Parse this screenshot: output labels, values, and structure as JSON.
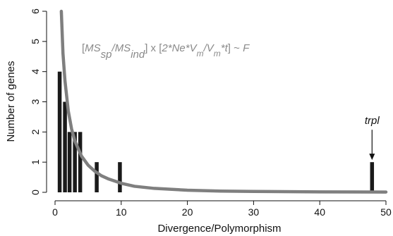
{
  "chart_data": {
    "type": "bar",
    "title": "",
    "xlabel": "Divergence/Polymorphism",
    "ylabel": "Number of genes",
    "xlim": [
      0,
      50
    ],
    "ylim": [
      0,
      6
    ],
    "xticks": [
      0,
      10,
      20,
      30,
      40,
      50
    ],
    "yticks": [
      0,
      1,
      2,
      3,
      4,
      5,
      6
    ],
    "bars": [
      {
        "x": 0.7,
        "count": 4
      },
      {
        "x": 1.5,
        "count": 3
      },
      {
        "x": 2.2,
        "count": 2
      },
      {
        "x": 3.0,
        "count": 2
      },
      {
        "x": 3.8,
        "count": 2
      },
      {
        "x": 6.3,
        "count": 1
      },
      {
        "x": 9.8,
        "count": 1
      },
      {
        "x": 47.9,
        "count": 1
      }
    ],
    "curve": {
      "name": "[MSsp/MSind] x [2*Ne*Vm/Vm*t] ~ F",
      "points": [
        [
          0.95,
          6.0
        ],
        [
          1.2,
          4.6
        ],
        [
          1.5,
          3.7
        ],
        [
          2.0,
          2.7
        ],
        [
          2.5,
          2.1
        ],
        [
          3.0,
          1.7
        ],
        [
          4.0,
          1.2
        ],
        [
          5.0,
          0.9
        ],
        [
          6.0,
          0.7
        ],
        [
          7.0,
          0.55
        ],
        [
          8.0,
          0.45
        ],
        [
          10.0,
          0.3
        ],
        [
          12.0,
          0.2
        ],
        [
          15.0,
          0.13
        ],
        [
          20.0,
          0.07
        ],
        [
          25.0,
          0.04
        ],
        [
          30.0,
          0.03
        ],
        [
          40.0,
          0.015
        ],
        [
          50.0,
          0.01
        ]
      ],
      "color": "#7f7f7f"
    },
    "formula_parts": {
      "p1": "[",
      "p2": "MS",
      "p3": "sp",
      "p4": "/",
      "p5": "MS",
      "p6": "ind",
      "p7": "] x [",
      "p8": "2*Ne*V",
      "p9": "m",
      "p10": "/V",
      "p11": "m",
      "p12": "*t",
      "p13": "] ~ ",
      "p14": "F"
    },
    "annotations": [
      {
        "text": "trpl",
        "x": 47.9,
        "y": 1
      }
    ],
    "bar_color": "#1a1a1a",
    "grid": false,
    "legend": "none"
  }
}
